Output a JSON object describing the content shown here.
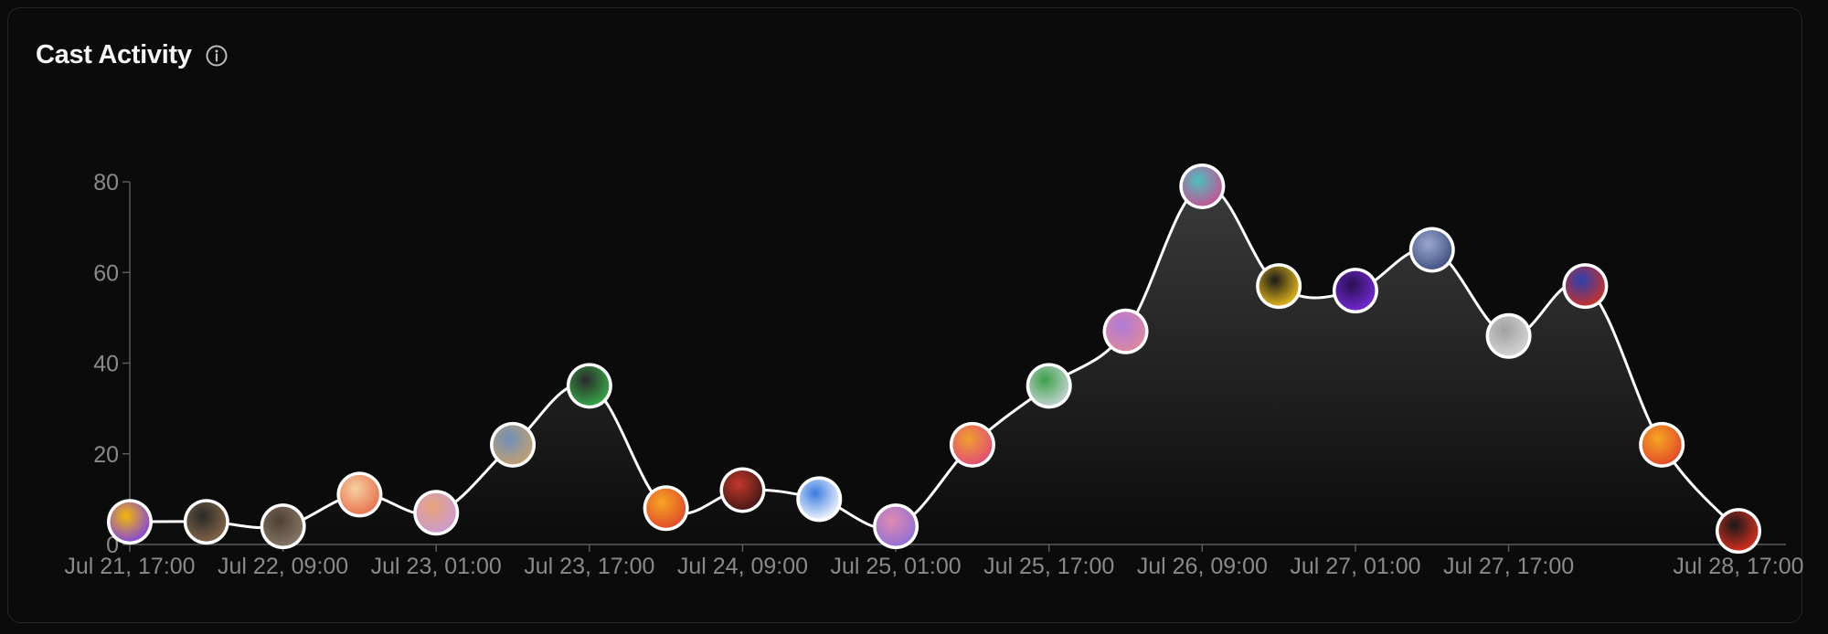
{
  "header": {
    "title": "Cast Activity",
    "info_icon": "info-circle-icon"
  },
  "colors": {
    "background": "#0b0b0b",
    "line": "#ffffff",
    "axis": "#5a5a5a",
    "tick_text": "#8a8a8a"
  },
  "chart_data": {
    "type": "area",
    "title": "Cast Activity",
    "xlabel": "",
    "ylabel": "",
    "ylim": [
      0,
      80
    ],
    "yticks": [
      0,
      20,
      40,
      60,
      80
    ],
    "grid": false,
    "x_tick_labels": [
      "Jul 21, 17:00",
      "Jul 22, 09:00",
      "Jul 23, 01:00",
      "Jul 23, 17:00",
      "Jul 24, 09:00",
      "Jul 25, 01:00",
      "Jul 25, 17:00",
      "Jul 26, 09:00",
      "Jul 27, 01:00",
      "Jul 27, 17:00",
      "Jul 28, 17:00"
    ],
    "x_tick_positions": [
      0,
      2,
      4,
      6,
      8,
      10,
      12,
      14,
      16,
      18,
      21
    ],
    "values": [
      5,
      5,
      4,
      11,
      7,
      22,
      35,
      8,
      12,
      10,
      4,
      22,
      35,
      47,
      79,
      57,
      56,
      65,
      46,
      57,
      22,
      3
    ],
    "point_avatars": [
      [
        "#7a3df0",
        "#f2b705"
      ],
      [
        "#8a6a4a",
        "#2a2a2a"
      ],
      [
        "#8c7b6b",
        "#4d3f33"
      ],
      [
        "#e86a4a",
        "#f5d0a0"
      ],
      [
        "#c99ad8",
        "#e8a37a"
      ],
      [
        "#c9a26b",
        "#6e8fb8"
      ],
      [
        "#38b24a",
        "#2a2a2a"
      ],
      [
        "#e0422a",
        "#f5a623"
      ],
      [
        "#3a1414",
        "#c23a2a"
      ],
      [
        "#ffffff",
        "#3b7be0"
      ],
      [
        "#8a6fd8",
        "#e08ab0"
      ],
      [
        "#e0457a",
        "#f0a030"
      ],
      [
        "#cfd8dc",
        "#3ca04a"
      ],
      [
        "#e08a9a",
        "#b07ad8"
      ],
      [
        "#d04a90",
        "#4ac0c0"
      ],
      [
        "#f5c518",
        "#1a1a1a"
      ],
      [
        "#7a2ae0",
        "#2a1050"
      ],
      [
        "#3a4a7a",
        "#9aa8d0"
      ],
      [
        "#d8d8d8",
        "#a0a0a0"
      ],
      [
        "#d8301e",
        "#2a40b0"
      ],
      [
        "#e0422a",
        "#f5a623"
      ],
      [
        "#e8301e",
        "#1a1a1a"
      ]
    ]
  }
}
